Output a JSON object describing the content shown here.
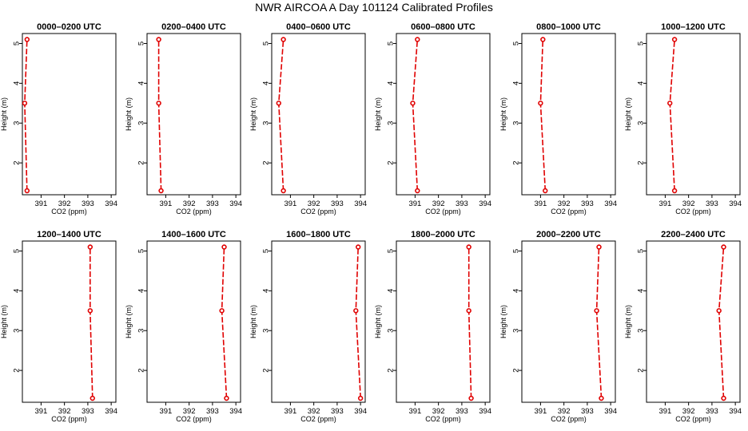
{
  "figure": {
    "title": "NWR AIRCOA A  Day 101124  Calibrated Profiles"
  },
  "chart_data": [
    {
      "type": "line",
      "title": "0000–0200 UTC",
      "xlabel": "CO2 (ppm)",
      "ylabel": "Height (m)",
      "xlim": [
        390.2,
        394.2
      ],
      "ylim": [
        1.2,
        5.25
      ],
      "xticks": [
        391,
        392,
        393,
        394
      ],
      "yticks": [
        2,
        3,
        4,
        5
      ],
      "series": [
        {
          "x": [
            390.4,
            390.3,
            390.4
          ],
          "y": [
            1.3,
            3.5,
            5.1
          ]
        }
      ]
    },
    {
      "type": "line",
      "title": "0200–0400 UTC",
      "xlabel": "CO2 (ppm)",
      "ylabel": "Height (m)",
      "xlim": [
        390.2,
        394.2
      ],
      "ylim": [
        1.2,
        5.25
      ],
      "xticks": [
        391,
        392,
        393,
        394
      ],
      "yticks": [
        2,
        3,
        4,
        5
      ],
      "series": [
        {
          "x": [
            390.8,
            390.7,
            390.7
          ],
          "y": [
            1.3,
            3.5,
            5.1
          ]
        }
      ]
    },
    {
      "type": "line",
      "title": "0400–0600 UTC",
      "xlabel": "CO2 (ppm)",
      "ylabel": "Height (m)",
      "xlim": [
        390.2,
        394.2
      ],
      "ylim": [
        1.2,
        5.25
      ],
      "xticks": [
        391,
        392,
        393,
        394
      ],
      "yticks": [
        2,
        3,
        4,
        5
      ],
      "series": [
        {
          "x": [
            390.7,
            390.5,
            390.7
          ],
          "y": [
            1.3,
            3.5,
            5.1
          ]
        }
      ]
    },
    {
      "type": "line",
      "title": "0600–0800 UTC",
      "xlabel": "CO2 (ppm)",
      "ylabel": "Height (m)",
      "xlim": [
        390.2,
        394.2
      ],
      "ylim": [
        1.2,
        5.25
      ],
      "xticks": [
        391,
        392,
        393,
        394
      ],
      "yticks": [
        2,
        3,
        4,
        5
      ],
      "series": [
        {
          "x": [
            391.1,
            390.9,
            391.1
          ],
          "y": [
            1.3,
            3.5,
            5.1
          ]
        }
      ]
    },
    {
      "type": "line",
      "title": "0800–1000 UTC",
      "xlabel": "CO2 (ppm)",
      "ylabel": "Height (m)",
      "xlim": [
        390.2,
        394.2
      ],
      "ylim": [
        1.2,
        5.25
      ],
      "xticks": [
        391,
        392,
        393,
        394
      ],
      "yticks": [
        2,
        3,
        4,
        5
      ],
      "series": [
        {
          "x": [
            391.2,
            391.0,
            391.1
          ],
          "y": [
            1.3,
            3.5,
            5.1
          ]
        }
      ]
    },
    {
      "type": "line",
      "title": "1000–1200 UTC",
      "xlabel": "CO2 (ppm)",
      "ylabel": "Height (m)",
      "xlim": [
        390.2,
        394.2
      ],
      "ylim": [
        1.2,
        5.25
      ],
      "xticks": [
        391,
        392,
        393,
        394
      ],
      "yticks": [
        2,
        3,
        4,
        5
      ],
      "series": [
        {
          "x": [
            391.4,
            391.2,
            391.4
          ],
          "y": [
            1.3,
            3.5,
            5.1
          ]
        }
      ]
    },
    {
      "type": "line",
      "title": "1200–1400 UTC",
      "xlabel": "CO2 (ppm)",
      "ylabel": "Height (m)",
      "xlim": [
        390.2,
        394.2
      ],
      "ylim": [
        1.2,
        5.25
      ],
      "xticks": [
        391,
        392,
        393,
        394
      ],
      "yticks": [
        2,
        3,
        4,
        5
      ],
      "series": [
        {
          "x": [
            393.2,
            393.1,
            393.1
          ],
          "y": [
            1.3,
            3.5,
            5.1
          ]
        }
      ]
    },
    {
      "type": "line",
      "title": "1400–1600 UTC",
      "xlabel": "CO2 (ppm)",
      "ylabel": "Height (m)",
      "xlim": [
        390.2,
        394.2
      ],
      "ylim": [
        1.2,
        5.25
      ],
      "xticks": [
        391,
        392,
        393,
        394
      ],
      "yticks": [
        2,
        3,
        4,
        5
      ],
      "series": [
        {
          "x": [
            393.6,
            393.4,
            393.5
          ],
          "y": [
            1.3,
            3.5,
            5.1
          ]
        }
      ]
    },
    {
      "type": "line",
      "title": "1600–1800 UTC",
      "xlabel": "CO2 (ppm)",
      "ylabel": "Height (m)",
      "xlim": [
        390.2,
        394.2
      ],
      "ylim": [
        1.2,
        5.25
      ],
      "xticks": [
        391,
        392,
        393,
        394
      ],
      "yticks": [
        2,
        3,
        4,
        5
      ],
      "series": [
        {
          "x": [
            394.0,
            393.8,
            393.9
          ],
          "y": [
            1.3,
            3.5,
            5.1
          ]
        }
      ]
    },
    {
      "type": "line",
      "title": "1800–2000 UTC",
      "xlabel": "CO2 (ppm)",
      "ylabel": "Height (m)",
      "xlim": [
        390.2,
        394.2
      ],
      "ylim": [
        1.2,
        5.25
      ],
      "xticks": [
        391,
        392,
        393,
        394
      ],
      "yticks": [
        2,
        3,
        4,
        5
      ],
      "series": [
        {
          "x": [
            393.4,
            393.3,
            393.3
          ],
          "y": [
            1.3,
            3.5,
            5.1
          ]
        }
      ]
    },
    {
      "type": "line",
      "title": "2000–2200 UTC",
      "xlabel": "CO2 (ppm)",
      "ylabel": "Height (m)",
      "xlim": [
        390.2,
        394.2
      ],
      "ylim": [
        1.2,
        5.25
      ],
      "xticks": [
        391,
        392,
        393,
        394
      ],
      "yticks": [
        2,
        3,
        4,
        5
      ],
      "series": [
        {
          "x": [
            393.6,
            393.4,
            393.5
          ],
          "y": [
            1.3,
            3.5,
            5.1
          ]
        }
      ]
    },
    {
      "type": "line",
      "title": "2200–2400 UTC",
      "xlabel": "CO2 (ppm)",
      "ylabel": "Height (m)",
      "xlim": [
        390.2,
        394.2
      ],
      "ylim": [
        1.2,
        5.25
      ],
      "xticks": [
        391,
        392,
        393,
        394
      ],
      "yticks": [
        2,
        3,
        4,
        5
      ],
      "series": [
        {
          "x": [
            393.5,
            393.3,
            393.5
          ],
          "y": [
            1.3,
            3.5,
            5.1
          ]
        }
      ]
    }
  ]
}
